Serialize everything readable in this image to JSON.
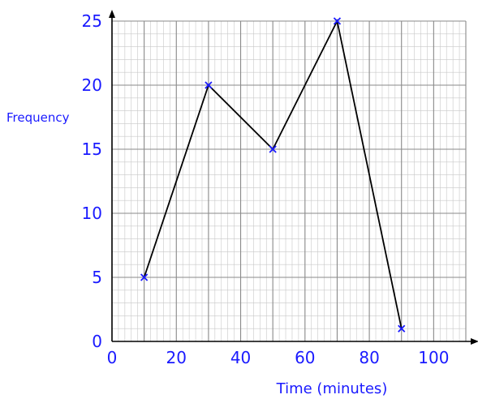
{
  "colors": {
    "text": "#1a1aff",
    "marker": "#1a1aff",
    "line": "#000000",
    "grid_major": "#8a8a8a",
    "grid_minor": "#c8c8c8",
    "axis": "#000000"
  },
  "chart_data": {
    "type": "line",
    "title": "",
    "xlabel": "Time (minutes)",
    "ylabel": "Frequency",
    "xlim": [
      0,
      110
    ],
    "ylim": [
      0,
      25
    ],
    "x_ticks": [
      0,
      20,
      40,
      60,
      80,
      100
    ],
    "y_ticks": [
      0,
      5,
      10,
      15,
      20,
      25
    ],
    "x_tick_labels": [
      "0",
      "20",
      "40",
      "60",
      "80",
      "100"
    ],
    "y_tick_labels": [
      "0",
      "5",
      "10",
      "15",
      "20",
      "25"
    ],
    "grid": true,
    "legend": "none",
    "marker": "x",
    "series": [
      {
        "x": [
          10,
          30,
          50,
          70,
          90
        ],
        "y": [
          5,
          20,
          15,
          25,
          1
        ]
      }
    ]
  }
}
